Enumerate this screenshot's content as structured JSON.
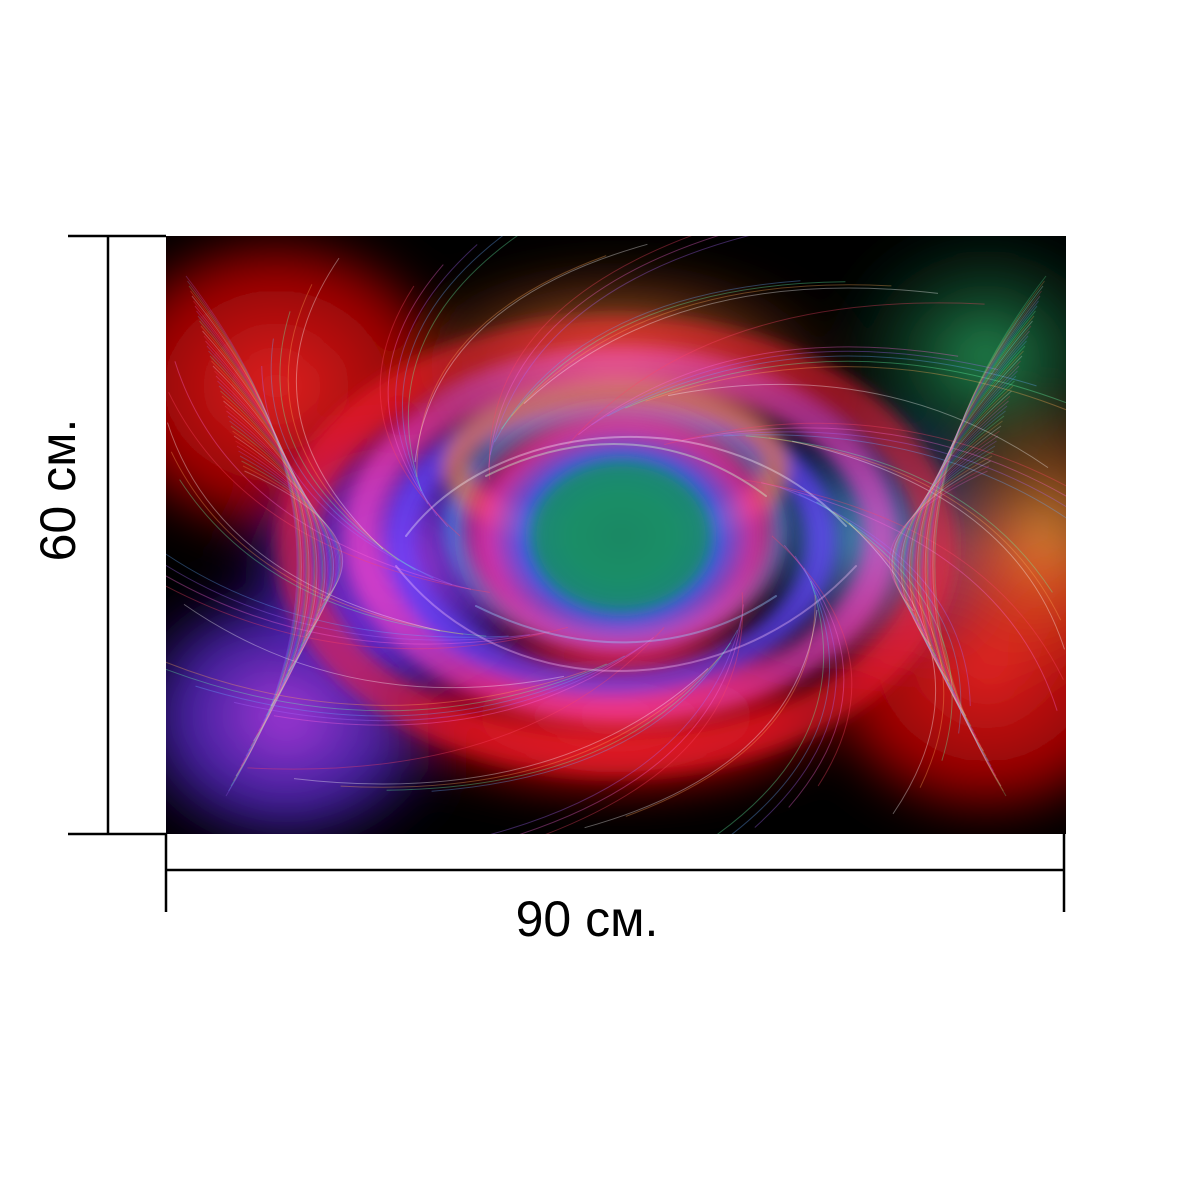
{
  "dimensions": {
    "width_label": "90 см.",
    "height_label": "60 см."
  },
  "artwork": {
    "subject": "abstract-light-swirl",
    "colors": {
      "background": "#000000",
      "red": "#ff1a1a",
      "magenta": "#ff33cc",
      "violet": "#9933ff",
      "blue": "#3355ff",
      "green": "#22aa55",
      "orange": "#ff8833"
    }
  },
  "page": {
    "background": "#ffffff",
    "line_color": "#000000"
  }
}
